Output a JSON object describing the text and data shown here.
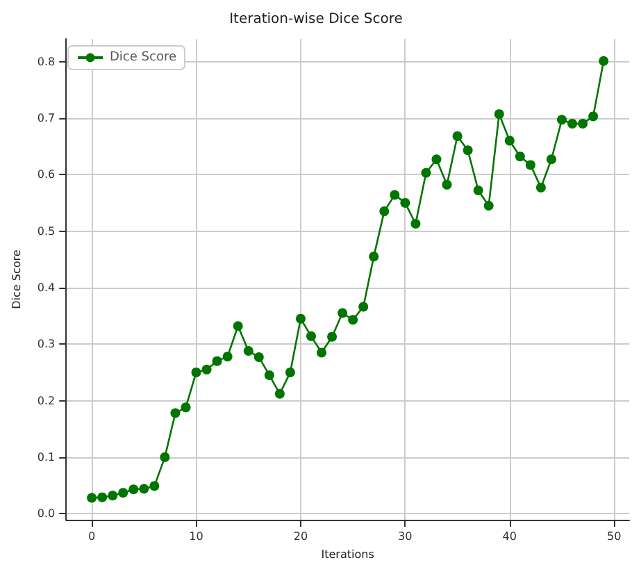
{
  "chart_data": {
    "type": "line",
    "title": "Iteration-wise Dice Score",
    "xlabel": "Iterations",
    "ylabel": "Dice Score",
    "x": [
      0,
      1,
      2,
      3,
      4,
      5,
      6,
      7,
      8,
      9,
      10,
      11,
      12,
      13,
      14,
      15,
      16,
      17,
      18,
      19,
      20,
      21,
      22,
      23,
      24,
      25,
      26,
      27,
      28,
      29,
      30,
      31,
      32,
      33,
      34,
      35,
      36,
      37,
      38,
      39,
      40,
      41,
      42,
      43,
      44,
      45,
      46,
      47,
      48,
      49
    ],
    "series": [
      {
        "name": "Dice Score",
        "color": "#007500",
        "values": [
          0.028,
          0.029,
          0.032,
          0.037,
          0.043,
          0.044,
          0.049,
          0.1,
          0.178,
          0.188,
          0.25,
          0.255,
          0.27,
          0.278,
          0.332,
          0.288,
          0.277,
          0.245,
          0.212,
          0.25,
          0.345,
          0.314,
          0.285,
          0.313,
          0.355,
          0.343,
          0.366,
          0.455,
          0.535,
          0.564,
          0.55,
          0.513,
          0.603,
          0.627,
          0.582,
          0.668,
          0.643,
          0.572,
          0.545,
          0.707,
          0.66,
          0.632,
          0.617,
          0.577,
          0.627,
          0.697,
          0.69,
          0.69,
          0.703,
          0.801
        ]
      }
    ],
    "xlim": [
      -2.45,
      51.45
    ],
    "xticks": [
      0,
      10,
      20,
      30,
      40,
      50
    ],
    "ylim": [
      -0.011,
      0.84
    ],
    "yticks": [
      {
        "value": 0,
        "label": "0.0"
      },
      0.1,
      0.2,
      0.3,
      0.4,
      0.5,
      0.6,
      0.7,
      0.8
    ],
    "grid": true,
    "legend": "top left",
    "marker": "circle",
    "line_style": "solid"
  }
}
